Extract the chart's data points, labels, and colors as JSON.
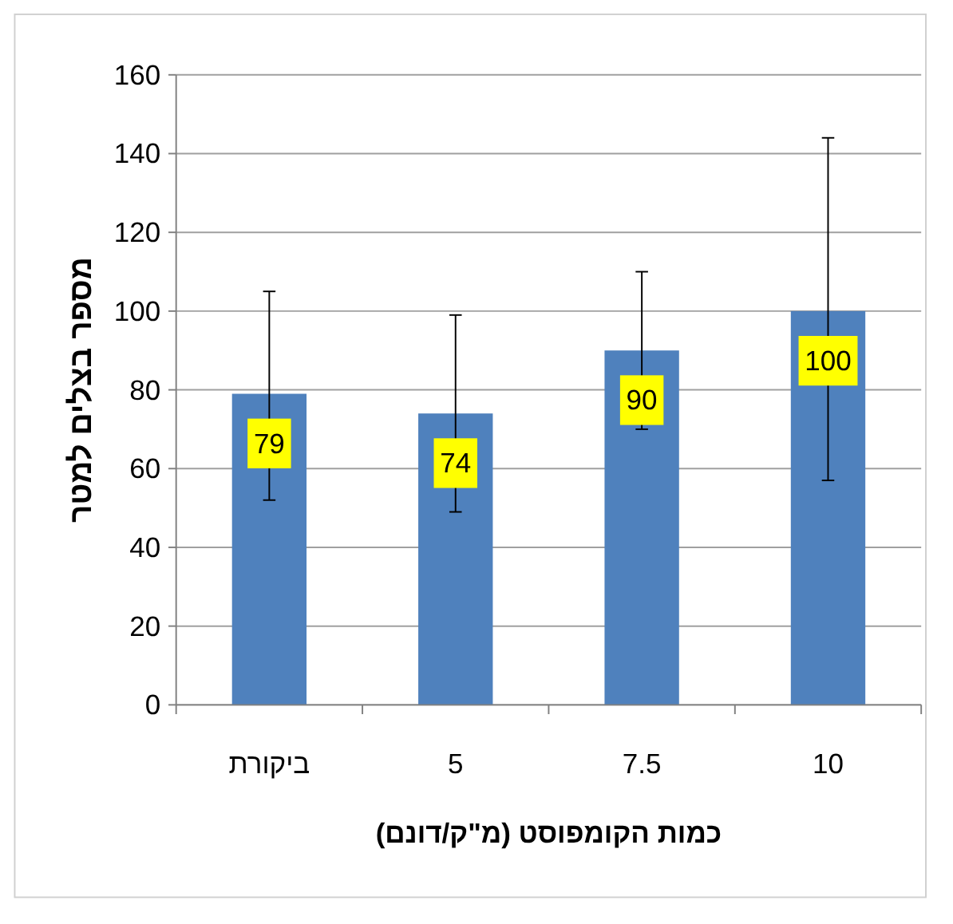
{
  "chart_data": {
    "type": "bar",
    "ylabel": "מספר בצלים למטר",
    "xlabel": "כמות הקומפוסט (מ\"ק/דונם)",
    "categories": [
      "ביקורת",
      "5",
      "7.5",
      "10"
    ],
    "values": [
      79,
      74,
      90,
      100
    ],
    "color": "#4f81bd",
    "errors": [
      [
        52,
        105
      ],
      [
        49,
        99
      ],
      [
        70,
        110
      ],
      [
        57,
        144
      ]
    ],
    "data_labels": true,
    "ylim": [
      0,
      160
    ],
    "yticks": [
      0,
      20,
      40,
      60,
      80,
      100,
      120,
      140,
      160
    ],
    "grid": "y"
  }
}
